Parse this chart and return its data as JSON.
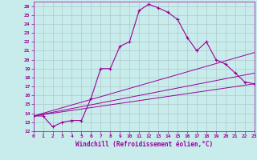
{
  "xlabel": "Windchill (Refroidissement éolien,°C)",
  "bg_color": "#c8ecec",
  "grid_color": "#b0c8c8",
  "line_color": "#990099",
  "xlim": [
    0,
    23
  ],
  "ylim": [
    12,
    26.5
  ],
  "xticks": [
    0,
    1,
    2,
    3,
    4,
    5,
    6,
    7,
    8,
    9,
    10,
    11,
    12,
    13,
    14,
    15,
    16,
    17,
    18,
    19,
    20,
    21,
    22,
    23
  ],
  "yticks": [
    12,
    13,
    14,
    15,
    16,
    17,
    18,
    19,
    20,
    21,
    22,
    23,
    24,
    25,
    26
  ],
  "curve1_x": [
    0,
    1,
    2,
    3,
    4,
    5,
    6,
    7,
    8,
    9,
    10,
    11,
    12,
    13,
    14,
    15,
    16,
    17,
    18,
    19,
    20,
    21,
    22,
    23
  ],
  "curve1_y": [
    13.7,
    13.7,
    12.5,
    13.0,
    13.2,
    13.2,
    15.7,
    19.0,
    19.0,
    21.5,
    22.0,
    25.5,
    26.2,
    25.8,
    25.3,
    24.5,
    22.5,
    21.0,
    22.0,
    20.0,
    19.5,
    18.5,
    17.5,
    17.3
  ],
  "curve2_x": [
    0,
    23
  ],
  "curve2_y": [
    13.7,
    17.3
  ],
  "curve3_x": [
    0,
    23
  ],
  "curve3_y": [
    13.7,
    20.8
  ],
  "curve4_x": [
    0,
    23
  ],
  "curve4_y": [
    13.7,
    18.5
  ]
}
